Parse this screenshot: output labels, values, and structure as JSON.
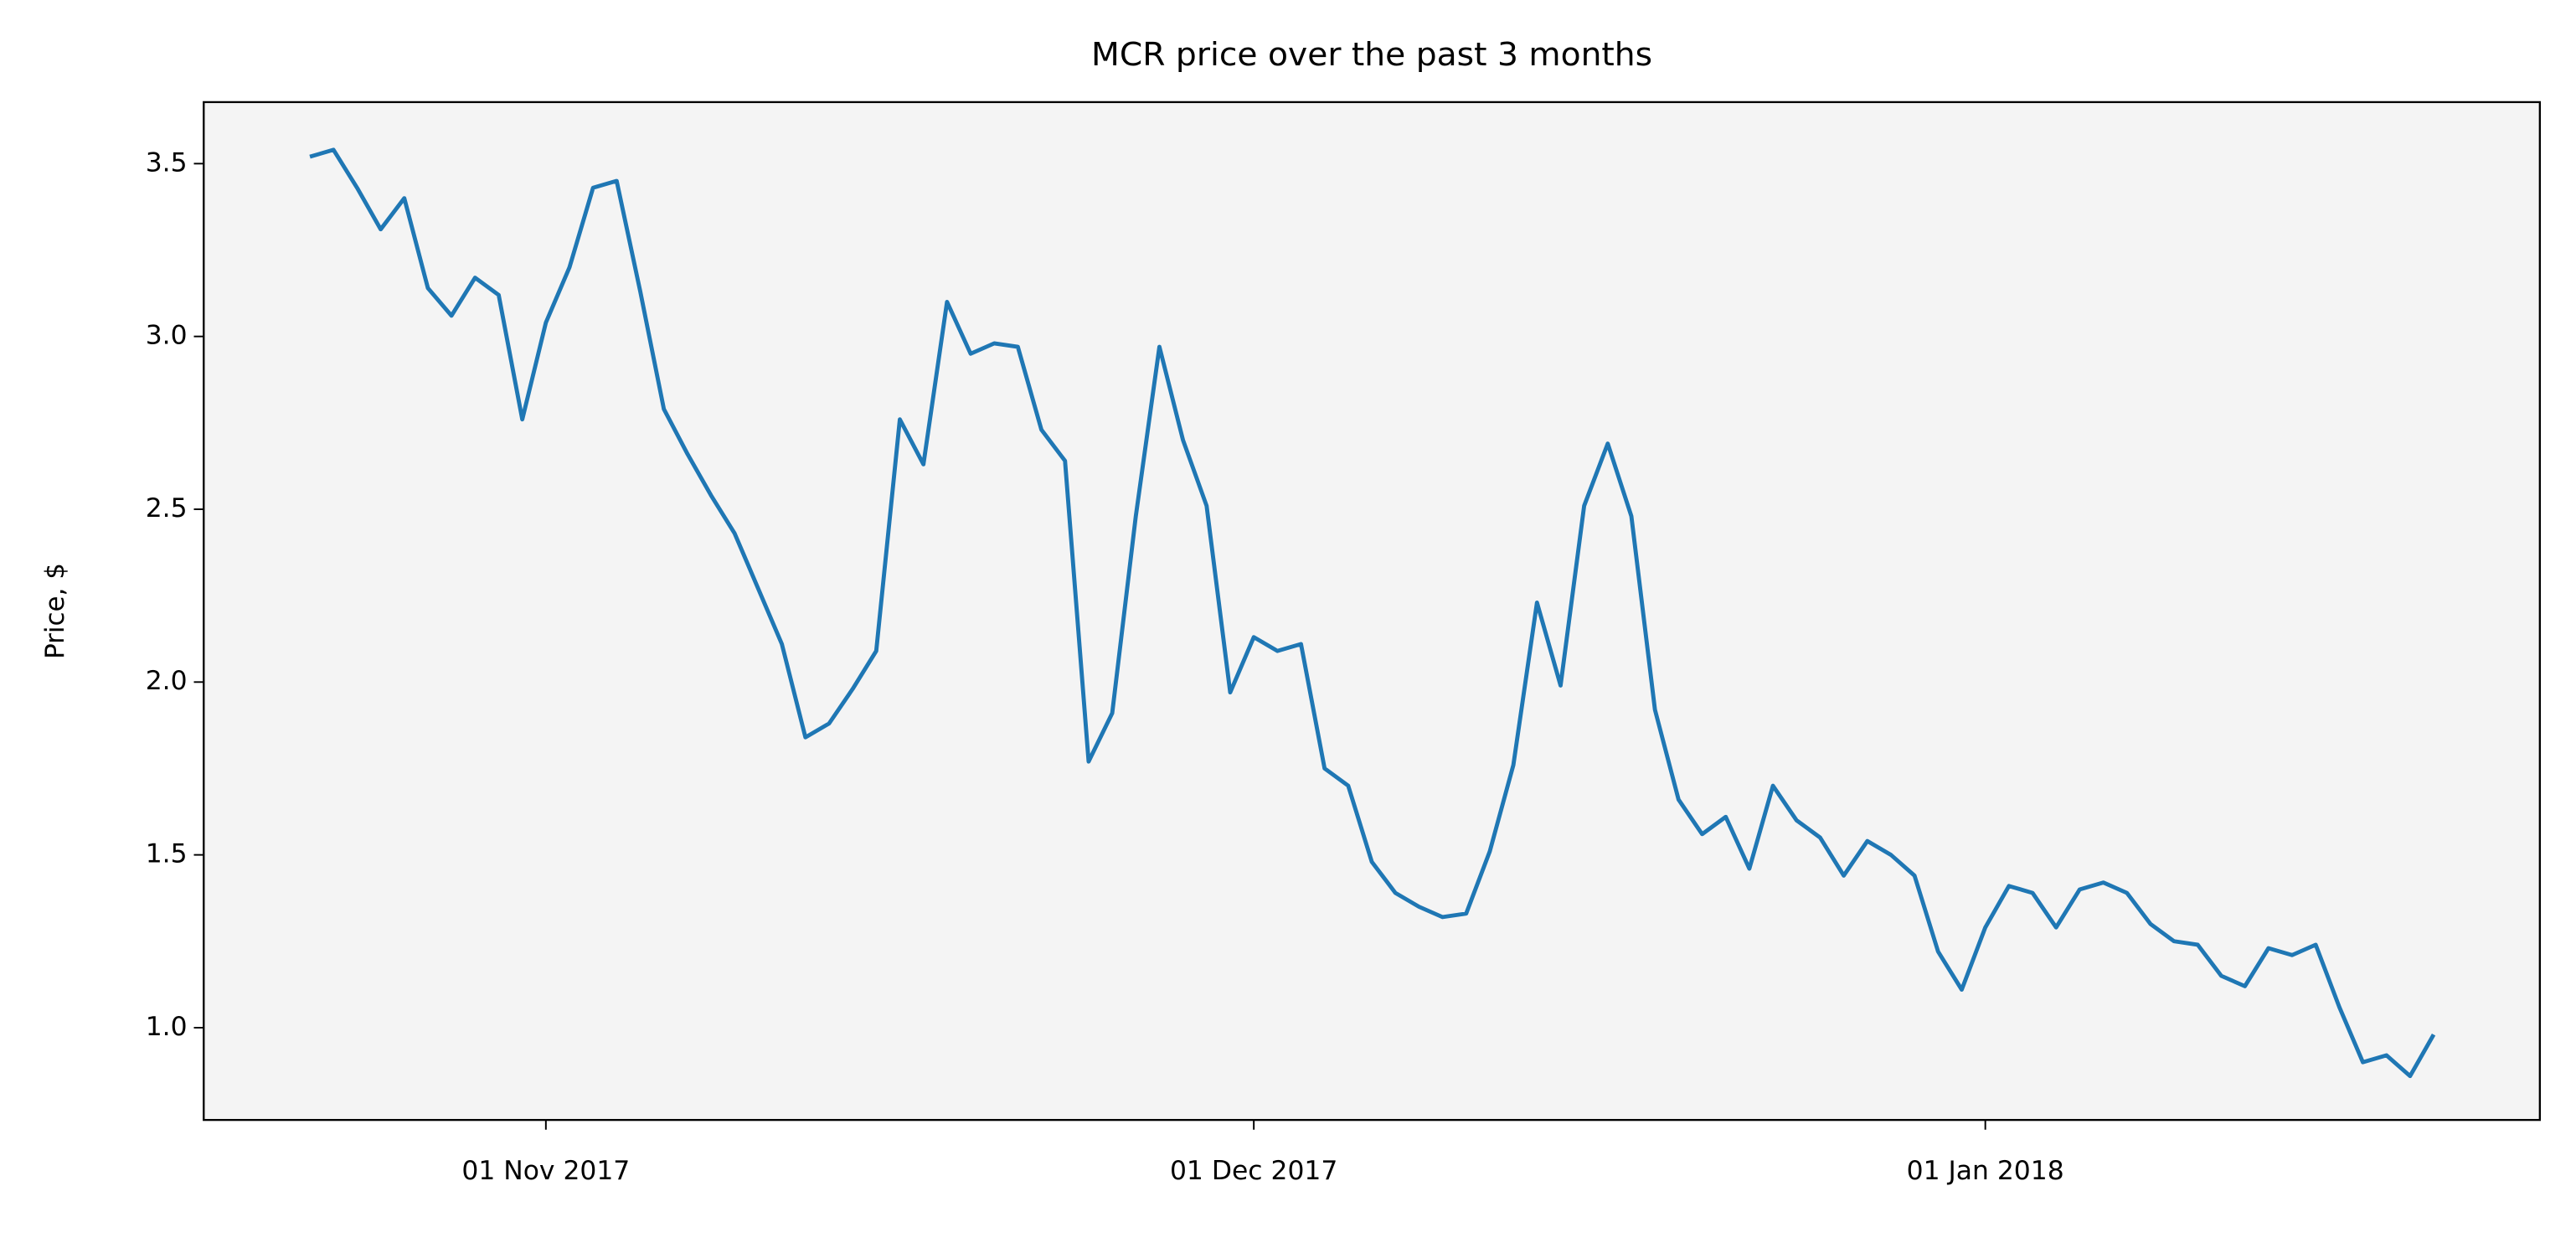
{
  "chart_data": {
    "type": "line",
    "title": "MCR price over the past 3 months",
    "y_label": "Price, $",
    "x": [
      "2017-10-22",
      "2017-10-23",
      "2017-10-24",
      "2017-10-25",
      "2017-10-26",
      "2017-10-27",
      "2017-10-28",
      "2017-10-29",
      "2017-10-30",
      "2017-10-31",
      "2017-11-01",
      "2017-11-02",
      "2017-11-03",
      "2017-11-04",
      "2017-11-05",
      "2017-11-06",
      "2017-11-07",
      "2017-11-08",
      "2017-11-09",
      "2017-11-10",
      "2017-11-11",
      "2017-11-12",
      "2017-11-13",
      "2017-11-14",
      "2017-11-15",
      "2017-11-16",
      "2017-11-17",
      "2017-11-18",
      "2017-11-19",
      "2017-11-20",
      "2017-11-21",
      "2017-11-22",
      "2017-11-23",
      "2017-11-24",
      "2017-11-25",
      "2017-11-26",
      "2017-11-27",
      "2017-11-28",
      "2017-11-29",
      "2017-11-30",
      "2017-12-01",
      "2017-12-02",
      "2017-12-03",
      "2017-12-04",
      "2017-12-05",
      "2017-12-06",
      "2017-12-07",
      "2017-12-08",
      "2017-12-09",
      "2017-12-10",
      "2017-12-11",
      "2017-12-12",
      "2017-12-13",
      "2017-12-14",
      "2017-12-15",
      "2017-12-16",
      "2017-12-17",
      "2017-12-18",
      "2017-12-19",
      "2017-12-20",
      "2017-12-21",
      "2017-12-22",
      "2017-12-23",
      "2017-12-24",
      "2017-12-25",
      "2017-12-26",
      "2017-12-27",
      "2017-12-28",
      "2017-12-29",
      "2017-12-30",
      "2017-12-31",
      "2018-01-01",
      "2018-01-02",
      "2018-01-03",
      "2018-01-04",
      "2018-01-05",
      "2018-01-06",
      "2018-01-07",
      "2018-01-08",
      "2018-01-09",
      "2018-01-10",
      "2018-01-11",
      "2018-01-12",
      "2018-01-13",
      "2018-01-14",
      "2018-01-15",
      "2018-01-16",
      "2018-01-17",
      "2018-01-18",
      "2018-01-19",
      "2018-01-20"
    ],
    "series": [
      {
        "name": "MCR",
        "color": "#1f77b4",
        "values": [
          3.52,
          3.54,
          3.43,
          3.31,
          3.4,
          3.14,
          3.06,
          3.17,
          3.12,
          2.76,
          3.04,
          3.2,
          3.43,
          3.45,
          3.13,
          2.79,
          2.66,
          2.54,
          2.43,
          2.27,
          2.11,
          1.84,
          1.88,
          1.98,
          2.09,
          2.76,
          2.63,
          3.1,
          2.95,
          2.98,
          2.97,
          2.73,
          2.64,
          1.77,
          1.91,
          2.48,
          2.97,
          2.7,
          2.51,
          1.97,
          2.13,
          2.09,
          2.11,
          1.75,
          1.7,
          1.48,
          1.39,
          1.35,
          1.32,
          1.33,
          1.51,
          1.76,
          2.23,
          1.99,
          2.51,
          2.69,
          2.48,
          1.92,
          1.66,
          1.56,
          1.61,
          1.46,
          1.7,
          1.6,
          1.55,
          1.44,
          1.54,
          1.5,
          1.44,
          1.22,
          1.11,
          1.29,
          1.41,
          1.39,
          1.29,
          1.4,
          1.42,
          1.39,
          1.3,
          1.25,
          1.24,
          1.15,
          1.12,
          1.23,
          1.21,
          1.24,
          1.06,
          0.9,
          0.92,
          0.86,
          0.98
        ]
      }
    ],
    "xlim": [
      "2017-10-17T12:00:00Z",
      "2018-01-24T12:00:00Z"
    ],
    "xticks": [
      {
        "value": "2017-11-01",
        "label": "01 Nov 2017"
      },
      {
        "value": "2017-12-01",
        "label": "01 Dec 2017"
      },
      {
        "value": "2018-01-01",
        "label": "01 Jan 2018"
      }
    ],
    "ylim": [
      0.733,
      3.678
    ],
    "yticks": [
      {
        "value": 1,
        "label": "1.0"
      },
      1.5,
      {
        "value": 2,
        "label": "2.0"
      },
      2.5,
      {
        "value": 3,
        "label": "3.0"
      },
      3.5
    ],
    "background": "#f4f4f4"
  }
}
